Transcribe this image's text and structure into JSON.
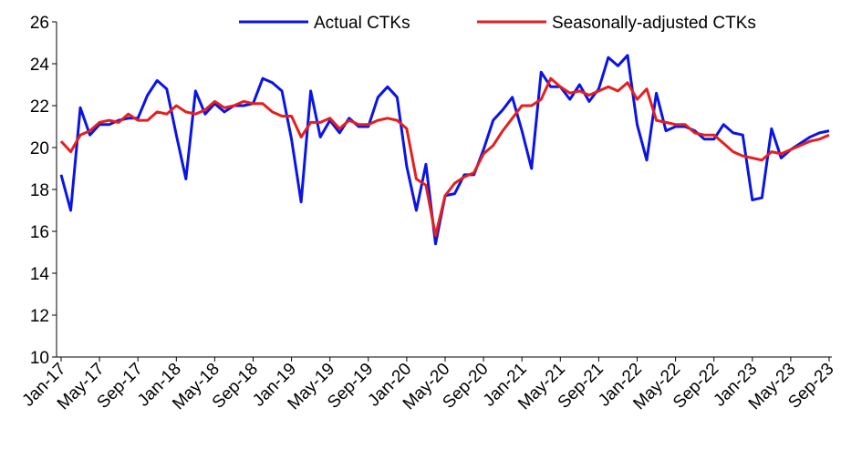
{
  "chart_data": {
    "type": "line",
    "categories": [
      "Jan-17",
      null,
      null,
      null,
      "May-17",
      null,
      null,
      null,
      "Sep-17",
      null,
      null,
      null,
      "Jan-18",
      null,
      null,
      null,
      "May-18",
      null,
      null,
      null,
      "Sep-18",
      null,
      null,
      null,
      "Jan-19",
      null,
      null,
      null,
      "May-19",
      null,
      null,
      null,
      "Sep-19",
      null,
      null,
      null,
      "Jan-20",
      null,
      null,
      null,
      "May-20",
      null,
      null,
      null,
      "Sep-20",
      null,
      null,
      null,
      "Jan-21",
      null,
      null,
      null,
      "May-21",
      null,
      null,
      null,
      "Sep-21",
      null,
      null,
      null,
      "Jan-22",
      null,
      null,
      null,
      "May-22",
      null,
      null,
      null,
      "Sep-22",
      null,
      null,
      null,
      "Jan-23",
      null,
      null,
      null,
      "May-23",
      null,
      null,
      null,
      "Sep-23"
    ],
    "series": [
      {
        "name": "Actual CTKs",
        "color": "#0a14e6",
        "values": [
          18.7,
          17.0,
          21.9,
          20.6,
          21.1,
          21.1,
          21.3,
          21.4,
          21.4,
          22.5,
          23.2,
          22.8,
          20.6,
          18.5,
          22.7,
          21.6,
          22.1,
          21.7,
          22.0,
          22.0,
          22.1,
          23.3,
          23.1,
          22.7,
          20.4,
          17.4,
          22.7,
          20.5,
          21.3,
          20.7,
          21.4,
          21.0,
          21.0,
          22.4,
          22.9,
          22.4,
          19.1,
          17.0,
          19.2,
          15.4,
          17.7,
          17.8,
          18.7,
          18.7,
          19.9,
          21.3,
          21.8,
          22.4,
          20.8,
          19.0,
          23.6,
          22.9,
          22.9,
          22.3,
          23.0,
          22.2,
          22.8,
          24.3,
          23.9,
          24.4,
          21.1,
          19.4,
          22.6,
          20.8,
          21.0,
          21.0,
          20.8,
          20.4,
          20.4,
          21.1,
          20.7,
          20.6,
          17.5,
          17.6,
          20.9,
          19.5,
          19.9,
          20.2,
          20.5,
          20.7,
          20.8
        ]
      },
      {
        "name": "Seasonally-adjusted CTKs",
        "color": "#e61e1e",
        "values": [
          20.3,
          19.8,
          20.6,
          20.8,
          21.2,
          21.3,
          21.2,
          21.6,
          21.3,
          21.3,
          21.7,
          21.6,
          22.0,
          21.7,
          21.6,
          21.8,
          22.2,
          21.9,
          22.0,
          22.2,
          22.1,
          22.1,
          21.7,
          21.5,
          21.5,
          20.5,
          21.2,
          21.2,
          21.4,
          20.9,
          21.3,
          21.1,
          21.1,
          21.3,
          21.4,
          21.3,
          20.9,
          18.5,
          18.2,
          15.8,
          17.7,
          18.3,
          18.6,
          18.8,
          19.7,
          20.1,
          20.8,
          21.4,
          22.0,
          22.0,
          22.3,
          23.3,
          22.9,
          22.6,
          22.7,
          22.5,
          22.7,
          22.9,
          22.7,
          23.1,
          22.3,
          22.8,
          21.3,
          21.2,
          21.1,
          21.1,
          20.7,
          20.6,
          20.6,
          20.2,
          19.8,
          19.6,
          19.5,
          19.4,
          19.8,
          19.7,
          19.9,
          20.1,
          20.3,
          20.4,
          20.6
        ]
      }
    ],
    "ylim": [
      10,
      26
    ],
    "yticks": [
      10,
      12,
      14,
      16,
      18,
      20,
      22,
      24,
      26
    ],
    "grid": false,
    "legend": "top"
  }
}
